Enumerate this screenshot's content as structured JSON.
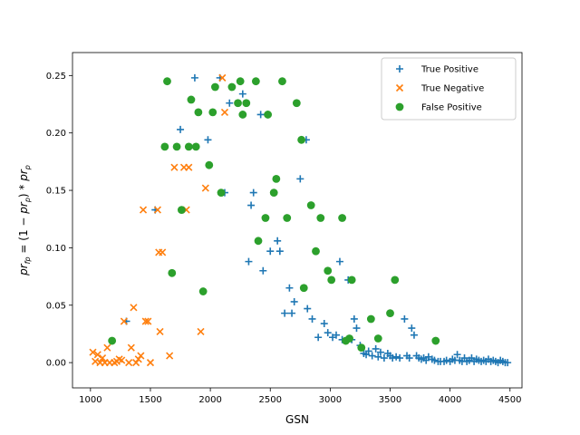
{
  "chart_data": {
    "type": "scatter",
    "title": "",
    "xlabel": "GSN",
    "ylabel": "pr_fp = (1 - pr_p) * pr_p",
    "ylabel_parts": {
      "lhs": "pr",
      "lhs_sub": "fp",
      "mid": " = (1 − ",
      "pr1": "pr",
      "pr1_sub": "p",
      "close": ")",
      "star": " * ",
      "pr2": "pr",
      "pr2_sub": "p"
    },
    "xlim": [
      850,
      4600
    ],
    "ylim": [
      -0.022,
      0.27
    ],
    "x_ticks": [
      1000,
      1500,
      2000,
      2500,
      3000,
      3500,
      4000,
      4500
    ],
    "x_tick_labels": [
      "1000",
      "1500",
      "2000",
      "2500",
      "3000",
      "3500",
      "4000",
      "4500"
    ],
    "y_ticks": [
      0.0,
      0.05,
      0.1,
      0.15,
      0.2,
      0.25
    ],
    "y_tick_labels": [
      "0.00",
      "0.05",
      "0.10",
      "0.15",
      "0.20",
      "0.25"
    ],
    "grid": false,
    "legend_position": "top-right",
    "series": [
      {
        "name": "True Positive",
        "marker": "plus",
        "color": "#1f77b4",
        "points": [
          [
            1300,
            0.036
          ],
          [
            1540,
            0.133
          ],
          [
            1750,
            0.203
          ],
          [
            1870,
            0.248
          ],
          [
            1980,
            0.194
          ],
          [
            2080,
            0.248
          ],
          [
            2120,
            0.148
          ],
          [
            2160,
            0.226
          ],
          [
            2270,
            0.234
          ],
          [
            2320,
            0.088
          ],
          [
            2340,
            0.137
          ],
          [
            2360,
            0.148
          ],
          [
            2420,
            0.216
          ],
          [
            2440,
            0.08
          ],
          [
            2500,
            0.097
          ],
          [
            2560,
            0.106
          ],
          [
            2580,
            0.097
          ],
          [
            2620,
            0.043
          ],
          [
            2660,
            0.065
          ],
          [
            2680,
            0.043
          ],
          [
            2700,
            0.053
          ],
          [
            2750,
            0.16
          ],
          [
            2800,
            0.194
          ],
          [
            2810,
            0.047
          ],
          [
            2850,
            0.038
          ],
          [
            2900,
            0.022
          ],
          [
            2950,
            0.034
          ],
          [
            2980,
            0.026
          ],
          [
            3020,
            0.022
          ],
          [
            3050,
            0.024
          ],
          [
            3080,
            0.088
          ],
          [
            3100,
            0.02
          ],
          [
            3150,
            0.072
          ],
          [
            3180,
            0.02
          ],
          [
            3200,
            0.038
          ],
          [
            3220,
            0.03
          ],
          [
            3250,
            0.015
          ],
          [
            3280,
            0.008
          ],
          [
            3300,
            0.007
          ],
          [
            3320,
            0.01
          ],
          [
            3350,
            0.006
          ],
          [
            3380,
            0.012
          ],
          [
            3400,
            0.005
          ],
          [
            3420,
            0.009
          ],
          [
            3450,
            0.004
          ],
          [
            3480,
            0.008
          ],
          [
            3500,
            0.006
          ],
          [
            3520,
            0.004
          ],
          [
            3550,
            0.005
          ],
          [
            3580,
            0.004
          ],
          [
            3620,
            0.038
          ],
          [
            3640,
            0.006
          ],
          [
            3660,
            0.004
          ],
          [
            3680,
            0.03
          ],
          [
            3700,
            0.024
          ],
          [
            3720,
            0.006
          ],
          [
            3740,
            0.004
          ],
          [
            3760,
            0.003
          ],
          [
            3780,
            0.004
          ],
          [
            3800,
            0.002
          ],
          [
            3820,
            0.005
          ],
          [
            3850,
            0.003
          ],
          [
            3870,
            0.002
          ],
          [
            3900,
            0.001
          ],
          [
            3920,
            0.001
          ],
          [
            3950,
            0.001
          ],
          [
            3970,
            0.002
          ],
          [
            4000,
            0.001
          ],
          [
            4020,
            0.003
          ],
          [
            4040,
            0.002
          ],
          [
            4060,
            0.007
          ],
          [
            4080,
            0.002
          ],
          [
            4100,
            0.001
          ],
          [
            4120,
            0.004
          ],
          [
            4140,
            0.001
          ],
          [
            4160,
            0.002
          ],
          [
            4180,
            0.004
          ],
          [
            4200,
            0.001
          ],
          [
            4220,
            0.003
          ],
          [
            4240,
            0.002
          ],
          [
            4260,
            0.001
          ],
          [
            4280,
            0.002
          ],
          [
            4300,
            0.001
          ],
          [
            4320,
            0.003
          ],
          [
            4340,
            0.001
          ],
          [
            4360,
            0.002
          ],
          [
            4380,
            0.001
          ],
          [
            4400,
            0.0
          ],
          [
            4420,
            0.002
          ],
          [
            4440,
            0.001
          ],
          [
            4460,
            0.0
          ],
          [
            4480,
            0.0
          ]
        ]
      },
      {
        "name": "True Negative",
        "marker": "x",
        "color": "#ff7f0e",
        "points": [
          [
            1020,
            0.009
          ],
          [
            1040,
            0.001
          ],
          [
            1060,
            0.007
          ],
          [
            1080,
            0.0
          ],
          [
            1100,
            0.004
          ],
          [
            1120,
            0.0
          ],
          [
            1140,
            0.013
          ],
          [
            1160,
            0.0
          ],
          [
            1200,
            0.0
          ],
          [
            1220,
            0.001
          ],
          [
            1240,
            0.003
          ],
          [
            1260,
            0.002
          ],
          [
            1280,
            0.036
          ],
          [
            1320,
            0.0
          ],
          [
            1340,
            0.013
          ],
          [
            1360,
            0.048
          ],
          [
            1380,
            0.0
          ],
          [
            1400,
            0.003
          ],
          [
            1420,
            0.006
          ],
          [
            1440,
            0.133
          ],
          [
            1460,
            0.036
          ],
          [
            1480,
            0.036
          ],
          [
            1500,
            0.0
          ],
          [
            1560,
            0.133
          ],
          [
            1570,
            0.096
          ],
          [
            1600,
            0.096
          ],
          [
            1580,
            0.027
          ],
          [
            1660,
            0.006
          ],
          [
            1700,
            0.17
          ],
          [
            1780,
            0.17
          ],
          [
            1800,
            0.133
          ],
          [
            1820,
            0.17
          ],
          [
            1920,
            0.027
          ],
          [
            1960,
            0.152
          ],
          [
            2100,
            0.248
          ],
          [
            2120,
            0.218
          ]
        ]
      },
      {
        "name": "False Positive",
        "marker": "circle",
        "color": "#2ca02c",
        "points": [
          [
            1180,
            0.019
          ],
          [
            1620,
            0.188
          ],
          [
            1640,
            0.245
          ],
          [
            1680,
            0.078
          ],
          [
            1720,
            0.188
          ],
          [
            1760,
            0.133
          ],
          [
            1820,
            0.188
          ],
          [
            1840,
            0.229
          ],
          [
            1880,
            0.188
          ],
          [
            1900,
            0.218
          ],
          [
            1940,
            0.062
          ],
          [
            1990,
            0.172
          ],
          [
            2020,
            0.218
          ],
          [
            2040,
            0.24
          ],
          [
            2090,
            0.148
          ],
          [
            2180,
            0.24
          ],
          [
            2230,
            0.226
          ],
          [
            2250,
            0.245
          ],
          [
            2270,
            0.216
          ],
          [
            2300,
            0.226
          ],
          [
            2380,
            0.245
          ],
          [
            2400,
            0.106
          ],
          [
            2460,
            0.126
          ],
          [
            2480,
            0.216
          ],
          [
            2530,
            0.148
          ],
          [
            2550,
            0.16
          ],
          [
            2600,
            0.245
          ],
          [
            2640,
            0.126
          ],
          [
            2720,
            0.226
          ],
          [
            2760,
            0.194
          ],
          [
            2780,
            0.065
          ],
          [
            2840,
            0.137
          ],
          [
            2880,
            0.097
          ],
          [
            2920,
            0.126
          ],
          [
            2980,
            0.08
          ],
          [
            3010,
            0.072
          ],
          [
            3100,
            0.126
          ],
          [
            3130,
            0.019
          ],
          [
            3160,
            0.021
          ],
          [
            3180,
            0.072
          ],
          [
            3260,
            0.013
          ],
          [
            3340,
            0.038
          ],
          [
            3400,
            0.021
          ],
          [
            3500,
            0.043
          ],
          [
            3540,
            0.072
          ],
          [
            3880,
            0.019
          ]
        ]
      }
    ]
  }
}
